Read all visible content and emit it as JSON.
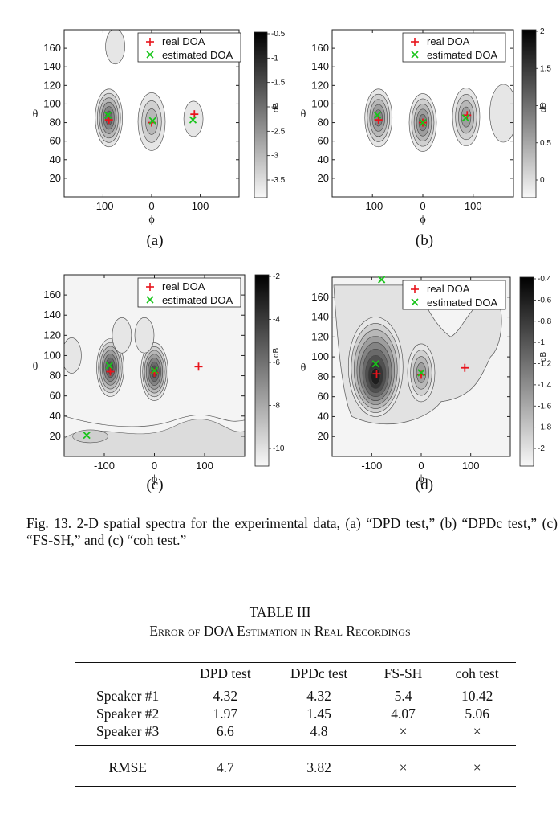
{
  "chart_data": [
    {
      "type": "contour",
      "panel_label": "(a)",
      "xlabel": "ϕ",
      "ylabel": "θ",
      "x_ticks": [
        -100,
        0,
        100
      ],
      "y_ticks": [
        20,
        40,
        60,
        80,
        100,
        120,
        140,
        160
      ],
      "xlim": [
        -180,
        180
      ],
      "ylim": [
        0,
        180
      ],
      "colorbar_label": "dB",
      "colorbar_ticks": [
        "-0.5",
        "-1",
        "-1.5",
        "-2",
        "-2.5",
        "-3",
        "-3.5"
      ],
      "legend": [
        "real DOA",
        "estimated DOA"
      ],
      "real_doa": [
        {
          "phi": -88,
          "theta": 83
        },
        {
          "phi": 0,
          "theta": 80
        },
        {
          "phi": 88,
          "theta": 89
        }
      ],
      "estimated_doa": [
        {
          "phi": -90,
          "theta": 88
        },
        {
          "phi": 2,
          "theta": 82
        },
        {
          "phi": 85,
          "theta": 83
        }
      ],
      "blobs": [
        {
          "phi": -88,
          "theta": 85,
          "levels": 6
        },
        {
          "phi": 0,
          "theta": 81,
          "levels": 3
        },
        {
          "phi": 86,
          "theta": 84,
          "levels": 1
        },
        {
          "phi": -75,
          "theta": 162,
          "levels": 1
        }
      ]
    },
    {
      "type": "contour",
      "panel_label": "(b)",
      "xlabel": "ϕ",
      "ylabel": "θ",
      "x_ticks": [
        -100,
        0,
        100
      ],
      "y_ticks": [
        20,
        40,
        60,
        80,
        100,
        120,
        140,
        160
      ],
      "xlim": [
        -180,
        180
      ],
      "ylim": [
        0,
        180
      ],
      "colorbar_label": "dB",
      "colorbar_ticks": [
        "2",
        "1.5",
        "1",
        "0.5",
        "0"
      ],
      "legend": [
        "real DOA",
        "estimated DOA"
      ],
      "real_doa": [
        {
          "phi": -88,
          "theta": 83
        },
        {
          "phi": 0,
          "theta": 80
        },
        {
          "phi": 88,
          "theta": 88
        }
      ],
      "estimated_doa": [
        {
          "phi": -90,
          "theta": 88
        },
        {
          "phi": 0,
          "theta": 80
        },
        {
          "phi": 85,
          "theta": 85
        }
      ],
      "blobs": [
        {
          "phi": -88,
          "theta": 85,
          "levels": 5
        },
        {
          "phi": 0,
          "theta": 80,
          "levels": 5
        },
        {
          "phi": 86,
          "theta": 86,
          "levels": 4
        },
        {
          "phi": 160,
          "theta": 90,
          "levels": 1
        }
      ]
    },
    {
      "type": "contour",
      "panel_label": "(c)",
      "xlabel": "ϕ",
      "ylabel": "θ",
      "x_ticks": [
        -100,
        0,
        100
      ],
      "y_ticks": [
        20,
        40,
        60,
        80,
        100,
        120,
        140,
        160
      ],
      "xlim": [
        -180,
        180
      ],
      "ylim": [
        0,
        180
      ],
      "colorbar_label": "dB",
      "colorbar_ticks": [
        "-2",
        "-4",
        "-6",
        "-8",
        "-10"
      ],
      "legend": [
        "real DOA",
        "estimated DOA"
      ],
      "real_doa": [
        {
          "phi": -88,
          "theta": 84
        },
        {
          "phi": 0,
          "theta": 83
        },
        {
          "phi": 88,
          "theta": 89
        }
      ],
      "estimated_doa": [
        {
          "phi": -90,
          "theta": 90
        },
        {
          "phi": 0,
          "theta": 85
        },
        {
          "phi": -135,
          "theta": 21
        }
      ],
      "blobs": [
        {
          "phi": -88,
          "theta": 88,
          "levels": 7
        },
        {
          "phi": 0,
          "theta": 84,
          "levels": 7
        },
        {
          "phi": -65,
          "theta": 120,
          "levels": 1
        },
        {
          "phi": -20,
          "theta": 120,
          "levels": 1
        },
        {
          "phi": -165,
          "theta": 100,
          "levels": 1
        }
      ]
    },
    {
      "type": "contour",
      "panel_label": "(d)",
      "xlabel": "ϕ",
      "ylabel": "θ",
      "x_ticks": [
        -100,
        0,
        100
      ],
      "y_ticks": [
        20,
        40,
        60,
        80,
        100,
        120,
        140,
        160
      ],
      "xlim": [
        -180,
        180
      ],
      "ylim": [
        0,
        180
      ],
      "colorbar_label": "dB",
      "colorbar_ticks": [
        "-0.4",
        "-0.6",
        "-0.8",
        "-1",
        "-1.2",
        "-1.4",
        "-1.6",
        "-1.8",
        "-2"
      ],
      "legend": [
        "real DOA",
        "estimated DOA"
      ],
      "real_doa": [
        {
          "phi": -90,
          "theta": 83
        },
        {
          "phi": 0,
          "theta": 82
        },
        {
          "phi": 88,
          "theta": 89
        }
      ],
      "estimated_doa": [
        {
          "phi": -92,
          "theta": 93
        },
        {
          "phi": 0,
          "theta": 84
        },
        {
          "phi": -80,
          "theta": 180
        }
      ],
      "blobs": [
        {
          "phi": -92,
          "theta": 90,
          "levels": 9
        },
        {
          "phi": 0,
          "theta": 84,
          "levels": 4
        }
      ]
    }
  ],
  "caption": "Fig. 13.  2-D spatial spectra for the experimental data, (a) “DPD test,” (b) “DPDc test,” (c) “FS-SH,” and (c) “coh test.”",
  "table": {
    "title": "TABLE III",
    "subtitle": "Error of DOA Estimation in Real Recordings",
    "columns": [
      "",
      "DPD test",
      "DPDc test",
      "FS-SH",
      "coh test"
    ],
    "rows": [
      [
        "Speaker #1",
        "4.32",
        "4.32",
        "5.4",
        "10.42"
      ],
      [
        "Speaker #2",
        "1.97",
        "1.45",
        "4.07",
        "5.06"
      ],
      [
        "Speaker #3",
        "6.6",
        "4.8",
        "×",
        "×"
      ]
    ],
    "rmse_row": [
      "RMSE",
      "4.7",
      "3.82",
      "×",
      "×"
    ]
  },
  "colors": {
    "real_doa": "#e8141c",
    "estimated_doa": "#18c41a"
  }
}
